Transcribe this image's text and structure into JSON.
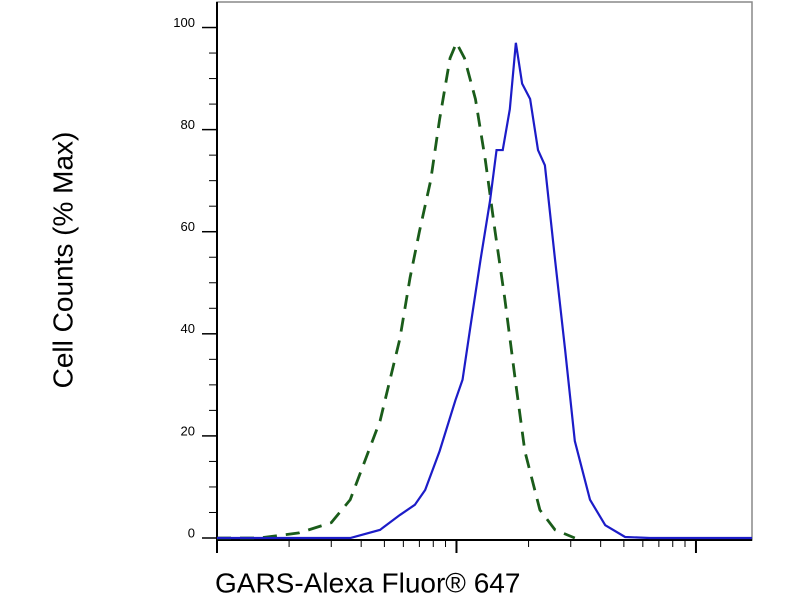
{
  "chart_data": {
    "type": "line",
    "y_label": "Cell Counts (% Max)",
    "x_label": "GARS-Alexa Fluor® 647",
    "xscale": "log",
    "xlim": [
      10,
      1714
    ],
    "ylim": [
      0,
      105
    ],
    "xticks": [
      10,
      100,
      1000
    ],
    "xminor_ticks": [
      20,
      30,
      40,
      50,
      60,
      70,
      80,
      90,
      200,
      300,
      400,
      500,
      600,
      700,
      800,
      900
    ],
    "yticks": [
      0,
      20,
      40,
      60,
      80,
      100
    ],
    "yminor_ticks": [
      5,
      10,
      15,
      25,
      30,
      35,
      45,
      50,
      55,
      65,
      70,
      75,
      85,
      90,
      95
    ],
    "series": [
      {
        "color": "#1a5c1a",
        "dashed": true,
        "x": [
          10,
          15,
          22,
          30,
          36,
          48,
          58,
          64,
          70,
          78,
          85,
          94,
          100,
          108,
          120,
          132,
          145,
          159,
          176,
          193,
          223,
          258,
          312
        ],
        "values": [
          0,
          0,
          1,
          3,
          7.5,
          23,
          39,
          51,
          60,
          70,
          82,
          94,
          97,
          94,
          86,
          74,
          60,
          47,
          31,
          17,
          5.5,
          1.6,
          0
        ]
      },
      {
        "color": "#1c1cc8",
        "dashed": false,
        "x": [
          10,
          36,
          48,
          58,
          67,
          74,
          85,
          99,
          106,
          114,
          126,
          138,
          147,
          156,
          167,
          177,
          188,
          203,
          219,
          234,
          258,
          284,
          312,
          361,
          418,
          506,
          642,
          1714
        ],
        "values": [
          0,
          0,
          1.6,
          4.5,
          6.5,
          9.4,
          17,
          27,
          31,
          41,
          54.5,
          66,
          76,
          76,
          84,
          97,
          89,
          86,
          76,
          73,
          54.5,
          37,
          19,
          7.5,
          2.5,
          0.2,
          0,
          0
        ]
      }
    ]
  }
}
